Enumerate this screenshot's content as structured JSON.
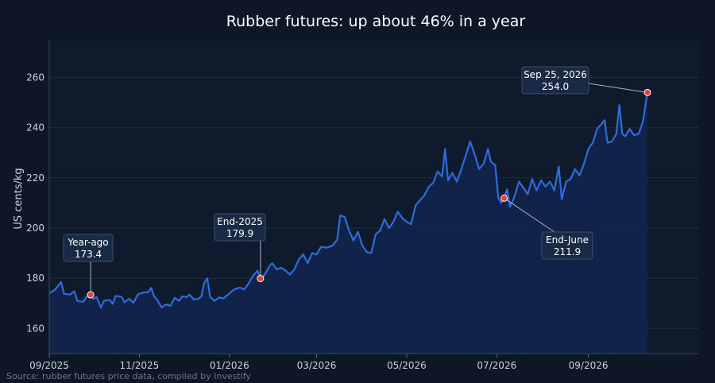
{
  "colors": {
    "background": "#0d1726",
    "plot_background": "#0f1b2c",
    "line": "#2f6bdc",
    "area": "#12244a",
    "marker": "#e0413c",
    "grid": "#1f2d40",
    "annotation_bg": "#182a45"
  },
  "chart_data": {
    "type": "area",
    "title": "Rubber futures: up about 46% in a year",
    "xlabel": "",
    "ylabel": "US cents/kg",
    "source": "Source: rubber futures price data, compiled by Investify",
    "x_range": [
      "2025-09-01",
      "2026-11-15"
    ],
    "ylim": [
      150,
      275
    ],
    "yticks": [
      160,
      180,
      200,
      220,
      240,
      260
    ],
    "xticks": [
      {
        "date": "2025-09-01",
        "label": "09/2025"
      },
      {
        "date": "2025-11-01",
        "label": "11/2025"
      },
      {
        "date": "2026-01-01",
        "label": "01/2026"
      },
      {
        "date": "2026-03-01",
        "label": "03/2026"
      },
      {
        "date": "2026-05-01",
        "label": "05/2026"
      },
      {
        "date": "2026-07-01",
        "label": "07/2026"
      },
      {
        "date": "2026-09-01",
        "label": "09/2026"
      }
    ],
    "grid": true,
    "series": [
      {
        "points": [
          [
            "2025-09-01",
            174.0
          ],
          [
            "2025-09-05",
            175.5
          ],
          [
            "2025-09-09",
            178.5
          ],
          [
            "2025-09-11",
            173.8
          ],
          [
            "2025-09-15",
            173.5
          ],
          [
            "2025-09-18",
            174.8
          ],
          [
            "2025-09-20",
            171.0
          ],
          [
            "2025-09-24",
            170.6
          ],
          [
            "2025-09-26",
            172.5
          ],
          [
            "2025-09-29",
            173.4
          ],
          [
            "2025-10-01",
            171.8
          ],
          [
            "2025-10-03",
            172.6
          ],
          [
            "2025-10-06",
            168.3
          ],
          [
            "2025-10-08",
            171.0
          ],
          [
            "2025-10-12",
            171.4
          ],
          [
            "2025-10-14",
            169.8
          ],
          [
            "2025-10-16",
            173.0
          ],
          [
            "2025-10-20",
            172.6
          ],
          [
            "2025-10-22",
            170.4
          ],
          [
            "2025-10-25",
            171.8
          ],
          [
            "2025-10-28",
            170.3
          ],
          [
            "2025-10-31",
            173.5
          ],
          [
            "2025-11-03",
            174.2
          ],
          [
            "2025-11-07",
            174.5
          ],
          [
            "2025-11-09",
            176.2
          ],
          [
            "2025-11-11",
            172.8
          ],
          [
            "2025-11-13",
            171.5
          ],
          [
            "2025-11-16",
            168.4
          ],
          [
            "2025-11-19",
            169.6
          ],
          [
            "2025-11-22",
            169.0
          ],
          [
            "2025-11-25",
            172.2
          ],
          [
            "2025-11-28",
            171.0
          ],
          [
            "2025-11-30",
            172.8
          ],
          [
            "2025-12-03",
            172.5
          ],
          [
            "2025-12-05",
            173.5
          ],
          [
            "2025-12-08",
            171.5
          ],
          [
            "2025-12-11",
            171.8
          ],
          [
            "2025-12-13",
            172.8
          ],
          [
            "2025-12-15",
            178.2
          ],
          [
            "2025-12-17",
            180.0
          ],
          [
            "2025-12-19",
            172.5
          ],
          [
            "2025-12-22",
            171.0
          ],
          [
            "2025-12-25",
            172.4
          ],
          [
            "2025-12-28",
            172.0
          ],
          [
            "2025-12-31",
            173.5
          ],
          [
            "2026-01-04",
            175.5
          ],
          [
            "2026-01-08",
            176.3
          ],
          [
            "2026-01-11",
            175.5
          ],
          [
            "2026-01-14",
            178.0
          ],
          [
            "2026-01-17",
            181.0
          ],
          [
            "2026-01-20",
            183.0
          ],
          [
            "2026-01-22",
            179.9
          ],
          [
            "2026-01-25",
            181.5
          ],
          [
            "2026-01-28",
            184.8
          ],
          [
            "2026-01-30",
            186.0
          ],
          [
            "2026-02-02",
            183.5
          ],
          [
            "2026-02-05",
            184.2
          ],
          [
            "2026-02-08",
            183.0
          ],
          [
            "2026-02-11",
            181.5
          ],
          [
            "2026-02-14",
            183.5
          ],
          [
            "2026-02-17",
            187.5
          ],
          [
            "2026-02-20",
            189.5
          ],
          [
            "2026-02-23",
            186.0
          ],
          [
            "2026-02-26",
            190.0
          ],
          [
            "2026-03-01",
            189.5
          ],
          [
            "2026-03-04",
            192.5
          ],
          [
            "2026-03-08",
            192.2
          ],
          [
            "2026-03-12",
            193.0
          ],
          [
            "2026-03-15",
            195.5
          ],
          [
            "2026-03-17",
            205.0
          ],
          [
            "2026-03-20",
            204.5
          ],
          [
            "2026-03-23",
            199.0
          ],
          [
            "2026-03-26",
            195.0
          ],
          [
            "2026-03-29",
            198.5
          ],
          [
            "2026-04-01",
            193.0
          ],
          [
            "2026-04-04",
            190.5
          ],
          [
            "2026-04-07",
            190.0
          ],
          [
            "2026-04-10",
            197.5
          ],
          [
            "2026-04-13",
            199.0
          ],
          [
            "2026-04-16",
            203.5
          ],
          [
            "2026-04-19",
            200.0
          ],
          [
            "2026-04-22",
            202.5
          ],
          [
            "2026-04-25",
            206.5
          ],
          [
            "2026-04-28",
            204.0
          ],
          [
            "2026-05-01",
            202.5
          ],
          [
            "2026-05-04",
            201.5
          ],
          [
            "2026-05-07",
            209.0
          ],
          [
            "2026-05-10",
            211.0
          ],
          [
            "2026-05-13",
            213.0
          ],
          [
            "2026-05-16",
            216.5
          ],
          [
            "2026-05-19",
            218.0
          ],
          [
            "2026-05-22",
            222.5
          ],
          [
            "2026-05-25",
            220.5
          ],
          [
            "2026-05-27",
            231.5
          ],
          [
            "2026-05-29",
            219.0
          ],
          [
            "2026-06-01",
            222.0
          ],
          [
            "2026-06-04",
            218.5
          ],
          [
            "2026-06-07",
            223.5
          ],
          [
            "2026-06-10",
            229.0
          ],
          [
            "2026-06-13",
            234.5
          ],
          [
            "2026-06-16",
            229.5
          ],
          [
            "2026-06-19",
            223.5
          ],
          [
            "2026-06-22",
            225.5
          ],
          [
            "2026-06-25",
            231.5
          ],
          [
            "2026-06-27",
            226.5
          ],
          [
            "2026-06-30",
            225.0
          ],
          [
            "2026-07-02",
            212.0
          ],
          [
            "2026-07-04",
            210.0
          ],
          [
            "2026-07-06",
            211.9
          ],
          [
            "2026-07-08",
            215.5
          ],
          [
            "2026-07-10",
            208.5
          ],
          [
            "2026-07-13",
            212.5
          ],
          [
            "2026-07-16",
            218.5
          ],
          [
            "2026-07-19",
            216.0
          ],
          [
            "2026-07-22",
            213.5
          ],
          [
            "2026-07-25",
            219.5
          ],
          [
            "2026-07-28",
            215.0
          ],
          [
            "2026-07-31",
            219.0
          ],
          [
            "2026-08-03",
            216.5
          ],
          [
            "2026-08-06",
            218.5
          ],
          [
            "2026-08-09",
            215.0
          ],
          [
            "2026-08-12",
            224.5
          ],
          [
            "2026-08-14",
            211.5
          ],
          [
            "2026-08-17",
            218.5
          ],
          [
            "2026-08-20",
            219.5
          ],
          [
            "2026-08-23",
            223.5
          ],
          [
            "2026-08-26",
            221.0
          ],
          [
            "2026-08-29",
            225.5
          ],
          [
            "2026-09-01",
            231.5
          ],
          [
            "2026-09-04",
            234.0
          ],
          [
            "2026-09-07",
            239.5
          ],
          [
            "2026-09-10",
            241.5
          ],
          [
            "2026-09-12",
            243.0
          ],
          [
            "2026-09-14",
            234.0
          ],
          [
            "2026-09-17",
            234.5
          ],
          [
            "2026-09-20",
            237.5
          ],
          [
            "2026-09-22",
            249.0
          ],
          [
            "2026-09-24",
            237.5
          ],
          [
            "2026-09-26",
            236.5
          ],
          [
            "2026-09-29",
            239.5
          ],
          [
            "2026-10-02",
            237.0
          ],
          [
            "2026-10-05",
            237.5
          ],
          [
            "2026-10-08",
            242.5
          ],
          [
            "2026-10-11",
            254.0
          ]
        ]
      }
    ],
    "annotations": [
      {
        "line1": "Year-ago",
        "line2": "173.4",
        "x": "2025-09-29",
        "y": 173.4
      },
      {
        "line1": "End-2025",
        "line2": "179.9",
        "x": "2026-01-22",
        "y": 179.9
      },
      {
        "line1": "End-June",
        "line2": "211.9",
        "x": "2026-07-06",
        "y": 211.9
      },
      {
        "line1": "Sep 25, 2026",
        "line2": "254.0",
        "x": "2026-10-11",
        "y": 254.0
      }
    ]
  }
}
